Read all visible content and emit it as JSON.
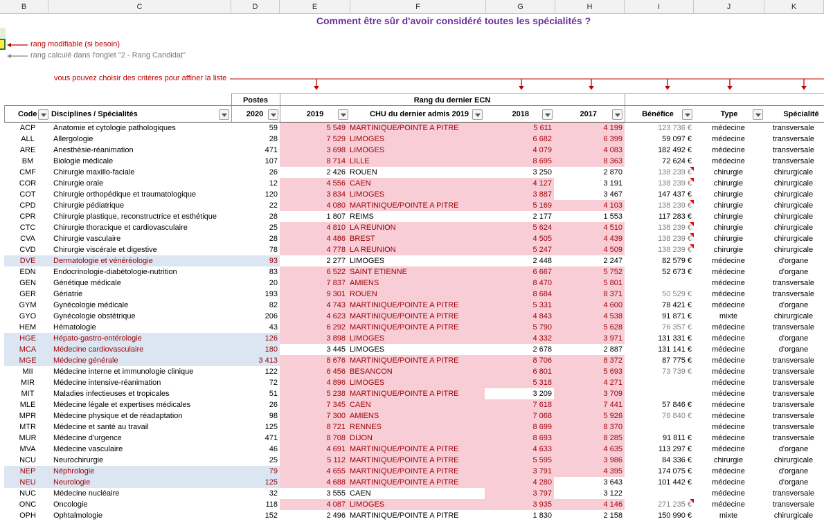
{
  "columns": [
    "B",
    "C",
    "D",
    "E",
    "F",
    "G",
    "H",
    "I",
    "J",
    "K"
  ],
  "title": "Comment être sûr d'avoir considéré toutes les spécialités ?",
  "notes": {
    "modifiable": "rang modifiable (si besoin)",
    "calcule": "rang calculé dans l'onglet \"2 - Rang Candidat\"",
    "criteres": "vous pouvez choisir des critères pour affiner la liste"
  },
  "headers": {
    "postes": "Postes",
    "rang": "Rang du dernier ECN",
    "code": "Code",
    "disciplines": "Disciplines / Spécialités",
    "y2020": "2020",
    "y2019": "2019",
    "chu": "CHU du dernier admis 2019",
    "y2018": "2018",
    "y2017": "2017",
    "benefice": "Bénéfice",
    "type": "Type",
    "specialite": "Spécialité"
  },
  "colors": {
    "highlight_pink": "#f8cdd6",
    "highlight_blue": "#dce6f2",
    "dark_red_text": "#9c0006",
    "title_purple": "#6b2fa0"
  },
  "rows": [
    {
      "code": "ACP",
      "name": "Anatomie et cytologie pathologiques",
      "postes": "59",
      "r2019": "5 549",
      "chu": "MARTINIQUE/POINTE A PITRE",
      "r2018": "5 611",
      "r2017": "4 199",
      "benefice": "123 736 €",
      "ben_gray": true,
      "ben_mark": false,
      "type": "médecine",
      "spec": "transversale",
      "hl": "",
      "e": true,
      "g": true,
      "h": true
    },
    {
      "code": "ALL",
      "name": "Allergologie",
      "postes": "28",
      "r2019": "7 529",
      "chu": "LIMOGES",
      "r2018": "6 682",
      "r2017": "6 399",
      "benefice": "59 097 €",
      "ben_gray": false,
      "ben_mark": false,
      "type": "médecine",
      "spec": "transversale",
      "hl": "",
      "e": true,
      "g": true,
      "h": true
    },
    {
      "code": "ARE",
      "name": "Anesthésie-réanimation",
      "postes": "471",
      "r2019": "3 698",
      "chu": "LIMOGES",
      "r2018": "4 079",
      "r2017": "4 083",
      "benefice": "182 492 €",
      "ben_gray": false,
      "ben_mark": false,
      "type": "médecine",
      "spec": "transversale",
      "hl": "",
      "e": true,
      "g": true,
      "h": true
    },
    {
      "code": "BM",
      "name": "Biologie médicale",
      "postes": "107",
      "r2019": "8 714",
      "chu": "LILLE",
      "r2018": "8 695",
      "r2017": "8 363",
      "benefice": "72 624 €",
      "ben_gray": false,
      "ben_mark": false,
      "type": "médecine",
      "spec": "transversale",
      "hl": "",
      "e": true,
      "g": true,
      "h": true
    },
    {
      "code": "CMF",
      "name": "Chirurgie maxillo-faciale",
      "postes": "26",
      "r2019": "2 426",
      "chu": "ROUEN",
      "r2018": "3 250",
      "r2017": "2 870",
      "benefice": "138 239 €",
      "ben_gray": true,
      "ben_mark": true,
      "type": "chirurgie",
      "spec": "chirurgicale",
      "hl": "",
      "e": false,
      "g": false,
      "h": false
    },
    {
      "code": "COR",
      "name": "Chirurgie orale",
      "postes": "12",
      "r2019": "4 556",
      "chu": "CAEN",
      "r2018": "4 127",
      "r2017": "3 191",
      "benefice": "138 239 €",
      "ben_gray": true,
      "ben_mark": true,
      "type": "chirurgie",
      "spec": "chirurgicale",
      "hl": "",
      "e": true,
      "g": true,
      "h": false
    },
    {
      "code": "COT",
      "name": "Chirurgie orthopédique et traumatologique",
      "postes": "120",
      "r2019": "3 834",
      "chu": "LIMOGES",
      "r2018": "3 887",
      "r2017": "3 467",
      "benefice": "147 437 €",
      "ben_gray": false,
      "ben_mark": false,
      "type": "chirurgie",
      "spec": "chirurgicale",
      "hl": "",
      "e": true,
      "g": true,
      "h": false
    },
    {
      "code": "CPD",
      "name": "Chirurgie pédiatrique",
      "postes": "22",
      "r2019": "4 080",
      "chu": "MARTINIQUE/POINTE A PITRE",
      "r2018": "5 169",
      "r2017": "4 103",
      "benefice": "138 239 €",
      "ben_gray": true,
      "ben_mark": true,
      "type": "chirurgie",
      "spec": "chirurgicale",
      "hl": "",
      "e": true,
      "g": true,
      "h": true
    },
    {
      "code": "CPR",
      "name": "Chirurgie plastique, reconstructrice et esthétique",
      "postes": "28",
      "r2019": "1 807",
      "chu": "REIMS",
      "r2018": "2 177",
      "r2017": "1 553",
      "benefice": "117 283 €",
      "ben_gray": false,
      "ben_mark": false,
      "type": "chirurgie",
      "spec": "chirurgicale",
      "hl": "",
      "e": false,
      "g": false,
      "h": false
    },
    {
      "code": "CTC",
      "name": "Chirurgie thoracique et cardiovasculaire",
      "postes": "25",
      "r2019": "4 810",
      "chu": "LA REUNION",
      "r2018": "5 624",
      "r2017": "4 510",
      "benefice": "138 239 €",
      "ben_gray": true,
      "ben_mark": true,
      "type": "chirurgie",
      "spec": "chirurgicale",
      "hl": "",
      "e": true,
      "g": true,
      "h": true
    },
    {
      "code": "CVA",
      "name": "Chirurgie vasculaire",
      "postes": "28",
      "r2019": "4 486",
      "chu": "BREST",
      "r2018": "4 505",
      "r2017": "4 439",
      "benefice": "138 239 €",
      "ben_gray": true,
      "ben_mark": true,
      "type": "chirurgie",
      "spec": "chirurgicale",
      "hl": "",
      "e": true,
      "g": true,
      "h": true
    },
    {
      "code": "CVD",
      "name": "Chirurgie viscérale et digestive",
      "postes": "78",
      "r2019": "4 778",
      "chu": "LA REUNION",
      "r2018": "5 247",
      "r2017": "4 509",
      "benefice": "138 239 €",
      "ben_gray": true,
      "ben_mark": true,
      "type": "chirurgie",
      "spec": "chirurgicale",
      "hl": "",
      "e": true,
      "g": true,
      "h": true
    },
    {
      "code": "DVE",
      "name": "Dermatologie et vénéréologie",
      "postes": "93",
      "r2019": "2 277",
      "chu": "LIMOGES",
      "r2018": "2 448",
      "r2017": "2 247",
      "benefice": "82 579 €",
      "ben_gray": false,
      "ben_mark": false,
      "type": "médecine",
      "spec": "d'organe",
      "hl": "blue",
      "e": false,
      "g": false,
      "h": false
    },
    {
      "code": "EDN",
      "name": "Endocrinologie-diabétologie-nutrition",
      "postes": "83",
      "r2019": "6 522",
      "chu": "SAINT ETIENNE",
      "r2018": "6 667",
      "r2017": "5 752",
      "benefice": "52 673 €",
      "ben_gray": false,
      "ben_mark": false,
      "type": "médecine",
      "spec": "d'organe",
      "hl": "",
      "e": true,
      "g": true,
      "h": true
    },
    {
      "code": "GEN",
      "name": "Génétique médicale",
      "postes": "20",
      "r2019": "7 837",
      "chu": "AMIENS",
      "r2018": "8 470",
      "r2017": "5 801",
      "benefice": "",
      "ben_gray": false,
      "ben_mark": false,
      "type": "médecine",
      "spec": "transversale",
      "hl": "",
      "e": true,
      "g": true,
      "h": true
    },
    {
      "code": "GER",
      "name": "Gériatrie",
      "postes": "193",
      "r2019": "9 301",
      "chu": "ROUEN",
      "r2018": "8 684",
      "r2017": "8 371",
      "benefice": "50 529 €",
      "ben_gray": true,
      "ben_mark": false,
      "type": "médecine",
      "spec": "transversale",
      "hl": "",
      "e": true,
      "g": true,
      "h": true
    },
    {
      "code": "GYM",
      "name": "Gynécologie médicale",
      "postes": "82",
      "r2019": "4 743",
      "chu": "MARTINIQUE/POINTE A PITRE",
      "r2018": "5 331",
      "r2017": "4 600",
      "benefice": "78 421 €",
      "ben_gray": false,
      "ben_mark": false,
      "type": "médecine",
      "spec": "d'organe",
      "hl": "",
      "e": true,
      "g": true,
      "h": true
    },
    {
      "code": "GYO",
      "name": "Gynécologie obstétrique",
      "postes": "206",
      "r2019": "4 623",
      "chu": "MARTINIQUE/POINTE A PITRE",
      "r2018": "4 843",
      "r2017": "4 538",
      "benefice": "91 871 €",
      "ben_gray": false,
      "ben_mark": false,
      "type": "mixte",
      "spec": "chirurgicale",
      "hl": "",
      "e": true,
      "g": true,
      "h": true
    },
    {
      "code": "HEM",
      "name": "Hématologie",
      "postes": "43",
      "r2019": "6 292",
      "chu": "MARTINIQUE/POINTE A PITRE",
      "r2018": "5 790",
      "r2017": "5 628",
      "benefice": "76 357 €",
      "ben_gray": true,
      "ben_mark": false,
      "type": "médecine",
      "spec": "transversale",
      "hl": "",
      "e": true,
      "g": true,
      "h": true
    },
    {
      "code": "HGE",
      "name": "Hépato-gastro-entérologie",
      "postes": "126",
      "r2019": "3 898",
      "chu": "LIMOGES",
      "r2018": "4 332",
      "r2017": "3 971",
      "benefice": "131 331 €",
      "ben_gray": false,
      "ben_mark": false,
      "type": "médecine",
      "spec": "d'organe",
      "hl": "blue",
      "e": true,
      "g": true,
      "h": true
    },
    {
      "code": "MCA",
      "name": "Médecine cardiovasculaire",
      "postes": "180",
      "r2019": "3 445",
      "chu": "LIMOGES",
      "r2018": "2 678",
      "r2017": "2 887",
      "benefice": "131 141 €",
      "ben_gray": false,
      "ben_mark": false,
      "type": "médecine",
      "spec": "d'organe",
      "hl": "blue",
      "e": false,
      "g": false,
      "h": false
    },
    {
      "code": "MGE",
      "name": "Médecine générale",
      "postes": "3 413",
      "r2019": "8 676",
      "chu": "MARTINIQUE/POINTE A PITRE",
      "r2018": "8 706",
      "r2017": "8 372",
      "benefice": "87 775 €",
      "ben_gray": false,
      "ben_mark": false,
      "type": "médecine",
      "spec": "transversale",
      "hl": "blue",
      "e": true,
      "g": true,
      "h": true
    },
    {
      "code": "MII",
      "name": "Médecine interne et immunologie clinique",
      "postes": "122",
      "r2019": "6 456",
      "chu": "BESANCON",
      "r2018": "6 801",
      "r2017": "5 693",
      "benefice": "73 739 €",
      "ben_gray": true,
      "ben_mark": false,
      "type": "médecine",
      "spec": "transversale",
      "hl": "",
      "e": true,
      "g": true,
      "h": true
    },
    {
      "code": "MIR",
      "name": "Médecine intensive-réanimation",
      "postes": "72",
      "r2019": "4 896",
      "chu": "LIMOGES",
      "r2018": "5 318",
      "r2017": "4 271",
      "benefice": "",
      "ben_gray": false,
      "ben_mark": false,
      "type": "médecine",
      "spec": "transversale",
      "hl": "",
      "e": true,
      "g": true,
      "h": true
    },
    {
      "code": "MIT",
      "name": "Maladies infectieuses et tropicales",
      "postes": "51",
      "r2019": "5 238",
      "chu": "MARTINIQUE/POINTE A PITRE",
      "r2018": "3 209",
      "r2017": "3 709",
      "benefice": "",
      "ben_gray": false,
      "ben_mark": false,
      "type": "médecine",
      "spec": "transversale",
      "hl": "",
      "e": true,
      "g": false,
      "h": true
    },
    {
      "code": "MLE",
      "name": "Médecine légale et expertises médicales",
      "postes": "26",
      "r2019": "7 345",
      "chu": "CAEN",
      "r2018": "7 618",
      "r2017": "7 441",
      "benefice": "57 846 €",
      "ben_gray": false,
      "ben_mark": false,
      "type": "médecine",
      "spec": "transversale",
      "hl": "",
      "e": true,
      "g": true,
      "h": true
    },
    {
      "code": "MPR",
      "name": "Médecine physique et de réadaptation",
      "postes": "98",
      "r2019": "7 300",
      "chu": "AMIENS",
      "r2018": "7 068",
      "r2017": "5 926",
      "benefice": "76 840 €",
      "ben_gray": true,
      "ben_mark": false,
      "type": "médecine",
      "spec": "transversale",
      "hl": "",
      "e": true,
      "g": true,
      "h": true
    },
    {
      "code": "MTR",
      "name": "Médecine et santé au travail",
      "postes": "125",
      "r2019": "8 721",
      "chu": "RENNES",
      "r2018": "8 699",
      "r2017": "8 370",
      "benefice": "",
      "ben_gray": false,
      "ben_mark": false,
      "type": "médecine",
      "spec": "transversale",
      "hl": "",
      "e": true,
      "g": true,
      "h": true
    },
    {
      "code": "MUR",
      "name": "Médecine d'urgence",
      "postes": "471",
      "r2019": "8 708",
      "chu": "DIJON",
      "r2018": "8 693",
      "r2017": "8 285",
      "benefice": "91 811 €",
      "ben_gray": false,
      "ben_mark": false,
      "type": "médecine",
      "spec": "transversale",
      "hl": "",
      "e": true,
      "g": true,
      "h": true
    },
    {
      "code": "MVA",
      "name": "Médecine vasculaire",
      "postes": "46",
      "r2019": "4 691",
      "chu": "MARTINIQUE/POINTE A PITRE",
      "r2018": "4 633",
      "r2017": "4 635",
      "benefice": "113 297 €",
      "ben_gray": false,
      "ben_mark": false,
      "type": "médecine",
      "spec": "d'organe",
      "hl": "",
      "e": true,
      "g": true,
      "h": true
    },
    {
      "code": "NCU",
      "name": "Neurochirurgie",
      "postes": "25",
      "r2019": "5 112",
      "chu": "MARTINIQUE/POINTE A PITRE",
      "r2018": "5 595",
      "r2017": "3 986",
      "benefice": "84 336 €",
      "ben_gray": false,
      "ben_mark": false,
      "type": "chirurgie",
      "spec": "chirurgicale",
      "hl": "",
      "e": true,
      "g": true,
      "h": true
    },
    {
      "code": "NEP",
      "name": "Néphrologie",
      "postes": "79",
      "r2019": "4 655",
      "chu": "MARTINIQUE/POINTE A PITRE",
      "r2018": "3 791",
      "r2017": "4 395",
      "benefice": "174 075 €",
      "ben_gray": false,
      "ben_mark": false,
      "type": "médecine",
      "spec": "d'organe",
      "hl": "blue",
      "e": true,
      "g": true,
      "h": true
    },
    {
      "code": "NEU",
      "name": "Neurologie",
      "postes": "125",
      "r2019": "4 688",
      "chu": "MARTINIQUE/POINTE A PITRE",
      "r2018": "4 280",
      "r2017": "3 643",
      "benefice": "101 442 €",
      "ben_gray": false,
      "ben_mark": false,
      "type": "médecine",
      "spec": "d'organe",
      "hl": "blue",
      "e": true,
      "g": true,
      "h": false
    },
    {
      "code": "NUC",
      "name": "Médecine nucléaire",
      "postes": "32",
      "r2019": "3 555",
      "chu": "CAEN",
      "r2018": "3 797",
      "r2017": "3 122",
      "benefice": "",
      "ben_gray": false,
      "ben_mark": false,
      "type": "médecine",
      "spec": "transversale",
      "hl": "",
      "e": false,
      "g": true,
      "h": false
    },
    {
      "code": "ONC",
      "name": "Oncologie",
      "postes": "118",
      "r2019": "4 087",
      "chu": "LIMOGES",
      "r2018": "3 935",
      "r2017": "4 146",
      "benefice": "271 235 €",
      "ben_gray": true,
      "ben_mark": true,
      "type": "médecine",
      "spec": "transversale",
      "hl": "",
      "e": true,
      "g": true,
      "h": true
    },
    {
      "code": "OPH",
      "name": "Ophtalmologie",
      "postes": "152",
      "r2019": "2 496",
      "chu": "MARTINIQUE/POINTE A PITRE",
      "r2018": "1 830",
      "r2017": "2 158",
      "benefice": "150 990 €",
      "ben_gray": false,
      "ben_mark": false,
      "type": "mixte",
      "spec": "chirurgicale",
      "hl": "",
      "e": false,
      "g": false,
      "h": false
    }
  ]
}
